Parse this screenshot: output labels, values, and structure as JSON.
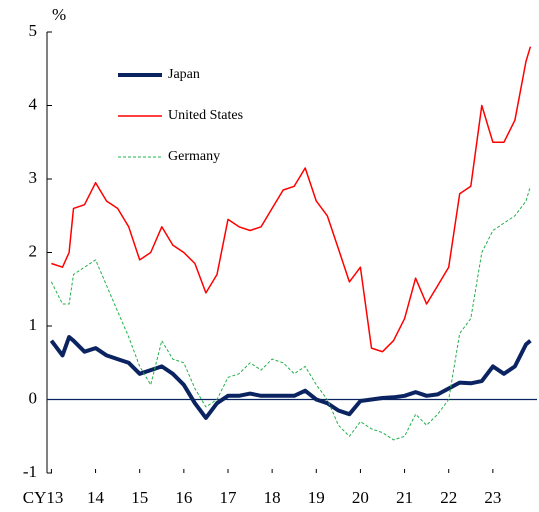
{
  "chart_data": {
    "type": "line",
    "y_label": "%",
    "x": [
      13.0,
      13.25,
      13.4,
      13.5,
      13.75,
      14.0,
      14.25,
      14.5,
      14.75,
      15.0,
      15.25,
      15.5,
      15.75,
      16.0,
      16.25,
      16.5,
      16.75,
      17.0,
      17.25,
      17.5,
      17.75,
      18.0,
      18.25,
      18.5,
      18.75,
      19.0,
      19.25,
      19.5,
      19.75,
      20.0,
      20.25,
      20.5,
      20.75,
      21.0,
      21.25,
      21.5,
      21.75,
      22.0,
      22.25,
      22.5,
      22.75,
      23.0,
      23.25,
      23.5,
      23.75,
      23.85
    ],
    "series": [
      {
        "name": "Japan",
        "color": "#0b2461",
        "values": [
          0.8,
          0.6,
          0.85,
          0.8,
          0.65,
          0.7,
          0.6,
          0.55,
          0.5,
          0.35,
          0.4,
          0.45,
          0.35,
          0.2,
          -0.05,
          -0.25,
          -0.05,
          0.05,
          0.05,
          0.08,
          0.05,
          0.05,
          0.05,
          0.05,
          0.12,
          0.0,
          -0.05,
          -0.15,
          -0.2,
          -0.02,
          0.0,
          0.02,
          0.03,
          0.05,
          0.1,
          0.05,
          0.07,
          0.15,
          0.23,
          0.22,
          0.25,
          0.45,
          0.35,
          0.45,
          0.75,
          0.8
        ]
      },
      {
        "name": "United States",
        "color": "#ff0000",
        "values": [
          1.85,
          1.8,
          2.0,
          2.6,
          2.65,
          2.95,
          2.7,
          2.6,
          2.35,
          1.9,
          2.0,
          2.35,
          2.1,
          2.0,
          1.85,
          1.45,
          1.7,
          2.45,
          2.35,
          2.3,
          2.35,
          2.6,
          2.85,
          2.9,
          3.15,
          2.7,
          2.5,
          2.05,
          1.6,
          1.8,
          0.7,
          0.65,
          0.8,
          1.1,
          1.65,
          1.3,
          1.55,
          1.8,
          2.8,
          2.9,
          4.0,
          3.5,
          3.5,
          3.8,
          4.6,
          4.8
        ]
      },
      {
        "name": "Germany",
        "color": "#22b04b",
        "values": [
          1.6,
          1.3,
          1.3,
          1.7,
          1.8,
          1.9,
          1.55,
          1.2,
          0.85,
          0.45,
          0.2,
          0.8,
          0.55,
          0.5,
          0.15,
          -0.1,
          0.0,
          0.3,
          0.35,
          0.5,
          0.4,
          0.55,
          0.5,
          0.35,
          0.45,
          0.2,
          0.0,
          -0.35,
          -0.5,
          -0.3,
          -0.4,
          -0.45,
          -0.55,
          -0.5,
          -0.2,
          -0.35,
          -0.2,
          0.0,
          0.9,
          1.1,
          2.0,
          2.3,
          2.4,
          2.5,
          2.7,
          2.9
        ]
      }
    ],
    "xlim": [
      12.9,
      24.0
    ],
    "xticks": [
      {
        "value": 13,
        "label": "CY13"
      },
      14,
      15,
      16,
      17,
      18,
      19,
      20,
      21,
      22,
      23
    ],
    "ylim": [
      -1,
      5
    ],
    "yticks": [
      -1,
      0,
      1,
      2,
      3,
      4,
      5
    ]
  }
}
